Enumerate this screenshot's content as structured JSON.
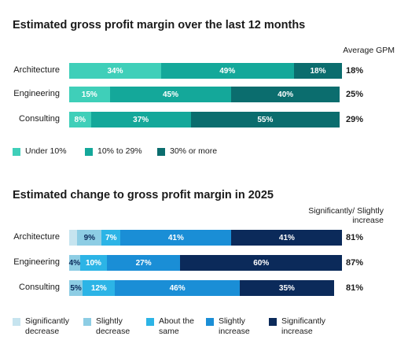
{
  "chart_data": [
    {
      "type": "stacked_bar_horizontal",
      "title": "Estimated gross profit margin over the last 12 months",
      "categories": [
        "Architecture",
        "Engineering",
        "Consulting"
      ],
      "xlim": [
        0,
        100
      ],
      "series": [
        {
          "name": "Under 10%",
          "color": "#3fcfb9",
          "values": [
            34,
            15,
            8
          ],
          "value_labels": [
            "34%",
            "15%",
            "8%"
          ]
        },
        {
          "name": "10% to 29%",
          "color": "#14a89a",
          "values": [
            49,
            45,
            37
          ],
          "value_labels": [
            "49%",
            "45%",
            "37%"
          ]
        },
        {
          "name": "30% or more",
          "color": "#0b6d6e",
          "values": [
            18,
            40,
            55
          ],
          "value_labels": [
            "18%",
            "40%",
            "55%"
          ]
        }
      ],
      "side_label": "Average GPM",
      "side_values": [
        18,
        25,
        29
      ],
      "side_value_labels": [
        "18%",
        "25%",
        "29%"
      ]
    },
    {
      "type": "stacked_bar_horizontal",
      "title": "Estimated change to gross profit margin in 2025",
      "categories": [
        "Architecture",
        "Engineering",
        "Consulting"
      ],
      "xlim": [
        0,
        100
      ],
      "series": [
        {
          "name": "Significantly decrease",
          "color": "#c6e4ef",
          "values": [
            3,
            0,
            0
          ],
          "value_labels": [
            null,
            null,
            null
          ]
        },
        {
          "name": "Slightly decrease",
          "color": "#8dcde4",
          "values": [
            9,
            4,
            5
          ],
          "value_labels": [
            "9%",
            "4%",
            "5%"
          ]
        },
        {
          "name": "About the same",
          "color": "#2cb4e6",
          "values": [
            7,
            10,
            12
          ],
          "value_labels": [
            "7%",
            "10%",
            "12%"
          ]
        },
        {
          "name": "Slightly increase",
          "color": "#1a8ed6",
          "values": [
            41,
            27,
            46
          ],
          "value_labels": [
            "41%",
            "27%",
            "46%"
          ]
        },
        {
          "name": "Significantly increase",
          "color": "#0b2a5a",
          "values": [
            41,
            60,
            35
          ],
          "value_labels": [
            "41%",
            "60%",
            "35%"
          ]
        }
      ],
      "side_label": "Significantly/ Slightly increase",
      "side_values": [
        81,
        87,
        81
      ],
      "side_value_labels": [
        "81%",
        "87%",
        "81%"
      ]
    }
  ]
}
